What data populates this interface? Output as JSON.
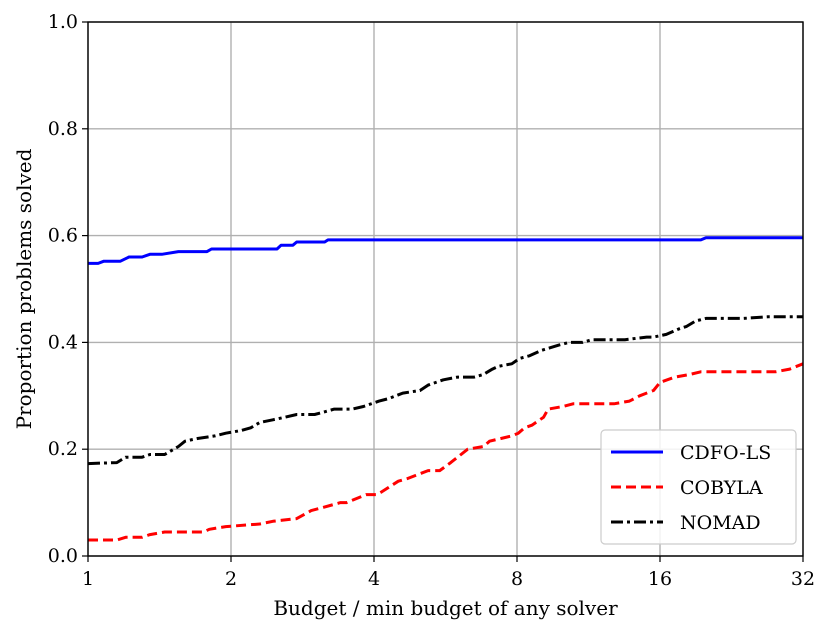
{
  "chart_data": {
    "type": "line",
    "title": "",
    "xlabel": "Budget / min budget of any solver",
    "ylabel": "Proportion problems solved",
    "xscale": "log2",
    "xlim": [
      1,
      32
    ],
    "ylim": [
      0,
      1
    ],
    "x_ticks": [
      1,
      2,
      4,
      8,
      16,
      32
    ],
    "x_tick_labels": [
      "1",
      "2",
      "4",
      "8",
      "16",
      "32"
    ],
    "y_ticks": [
      0,
      0.2,
      0.4,
      0.6,
      0.8,
      1.0
    ],
    "y_tick_labels": [
      "0.0",
      "0.2",
      "0.4",
      "0.6",
      "0.8",
      "1.0"
    ],
    "grid": true,
    "legend_position": "lower-right",
    "series": [
      {
        "name": "CDFO-LS",
        "color": "#0000ff",
        "style": "solid",
        "x": [
          1,
          1.05,
          1.08,
          1.17,
          1.22,
          1.3,
          1.35,
          1.43,
          1.55,
          1.58,
          1.78,
          1.82,
          2.5,
          2.55,
          2.7,
          2.75,
          3.15,
          3.2,
          19.5,
          20,
          32
        ],
        "y": [
          0.548,
          0.548,
          0.552,
          0.552,
          0.56,
          0.56,
          0.565,
          0.565,
          0.57,
          0.57,
          0.57,
          0.575,
          0.575,
          0.582,
          0.582,
          0.588,
          0.588,
          0.592,
          0.592,
          0.596,
          0.596
        ]
      },
      {
        "name": "COBYLA",
        "color": "#ff0000",
        "style": "dashed",
        "x": [
          1,
          1.15,
          1.2,
          1.3,
          1.35,
          1.45,
          1.6,
          1.65,
          1.75,
          1.8,
          1.95,
          2.3,
          2.45,
          2.75,
          2.95,
          3.1,
          3.4,
          3.5,
          3.85,
          4.05,
          4.15,
          4.5,
          4.7,
          5.2,
          5.5,
          5.8,
          6,
          6.3,
          6.8,
          7,
          7.8,
          8.05,
          8.3,
          8.6,
          9.1,
          9.3,
          10,
          10.5,
          11,
          12.8,
          13.8,
          14.5,
          15.5,
          16,
          17.2,
          18.5,
          19.5,
          21,
          24,
          28,
          30,
          32
        ],
        "y": [
          0.03,
          0.03,
          0.035,
          0.035,
          0.04,
          0.045,
          0.045,
          0.045,
          0.045,
          0.05,
          0.055,
          0.06,
          0.065,
          0.07,
          0.085,
          0.09,
          0.1,
          0.1,
          0.115,
          0.115,
          0.12,
          0.14,
          0.145,
          0.16,
          0.16,
          0.175,
          0.185,
          0.2,
          0.205,
          0.215,
          0.225,
          0.23,
          0.24,
          0.245,
          0.26,
          0.275,
          0.28,
          0.285,
          0.285,
          0.285,
          0.29,
          0.3,
          0.31,
          0.325,
          0.335,
          0.34,
          0.345,
          0.345,
          0.345,
          0.345,
          0.35,
          0.36
        ]
      },
      {
        "name": "NOMAD",
        "color": "#000000",
        "style": "dashdot",
        "x": [
          1,
          1.15,
          1.2,
          1.3,
          1.35,
          1.45,
          1.55,
          1.6,
          1.7,
          1.85,
          1.95,
          2.1,
          2.2,
          2.3,
          2.45,
          2.6,
          2.75,
          3,
          3.15,
          3.3,
          3.6,
          3.8,
          4.1,
          4.3,
          4.6,
          5,
          5.2,
          5.6,
          6,
          6.5,
          6.8,
          7.1,
          7.3,
          7.8,
          8.1,
          8.5,
          9,
          9.4,
          9.8,
          10.3,
          11,
          11.5,
          12.5,
          13.5,
          15,
          15.5,
          16.5,
          17.5,
          18.2,
          19,
          20,
          21.5,
          24,
          27,
          30,
          32
        ],
        "y": [
          0.173,
          0.175,
          0.185,
          0.185,
          0.19,
          0.19,
          0.205,
          0.215,
          0.22,
          0.225,
          0.23,
          0.235,
          0.24,
          0.25,
          0.255,
          0.26,
          0.265,
          0.265,
          0.27,
          0.275,
          0.275,
          0.28,
          0.29,
          0.295,
          0.305,
          0.31,
          0.32,
          0.33,
          0.335,
          0.335,
          0.34,
          0.35,
          0.355,
          0.36,
          0.37,
          0.375,
          0.385,
          0.39,
          0.395,
          0.4,
          0.4,
          0.405,
          0.405,
          0.405,
          0.41,
          0.41,
          0.415,
          0.425,
          0.43,
          0.44,
          0.445,
          0.445,
          0.445,
          0.448,
          0.448,
          0.448
        ]
      }
    ]
  }
}
